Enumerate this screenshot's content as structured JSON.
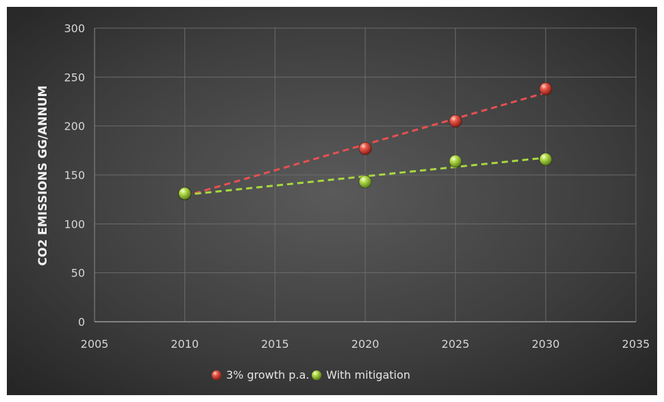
{
  "chart_data": {
    "type": "scatter",
    "title": "",
    "xlabel": "",
    "ylabel": "CO2 EMISSIONS GG/ANNUM",
    "xlim": [
      2005,
      2035
    ],
    "ylim": [
      0,
      300
    ],
    "x_ticks": [
      "2005",
      "2010",
      "2015",
      "2020",
      "2025",
      "2030",
      "2035"
    ],
    "y_ticks": [
      "0",
      "50",
      "100",
      "150",
      "200",
      "250",
      "300"
    ],
    "grid": true,
    "legend_position": "bottom",
    "series": [
      {
        "name": "3% growth p.a.",
        "color": "#d9403a",
        "trendline": "linear dashed",
        "points": [
          {
            "x": 2010,
            "y": 131
          },
          {
            "x": 2020,
            "y": 177
          },
          {
            "x": 2025,
            "y": 205
          },
          {
            "x": 2030,
            "y": 238
          }
        ]
      },
      {
        "name": "With mitigation",
        "color": "#a6d23c",
        "trendline": "linear dashed",
        "points": [
          {
            "x": 2010,
            "y": 131
          },
          {
            "x": 2020,
            "y": 143
          },
          {
            "x": 2025,
            "y": 164
          },
          {
            "x": 2030,
            "y": 166
          }
        ]
      }
    ]
  }
}
